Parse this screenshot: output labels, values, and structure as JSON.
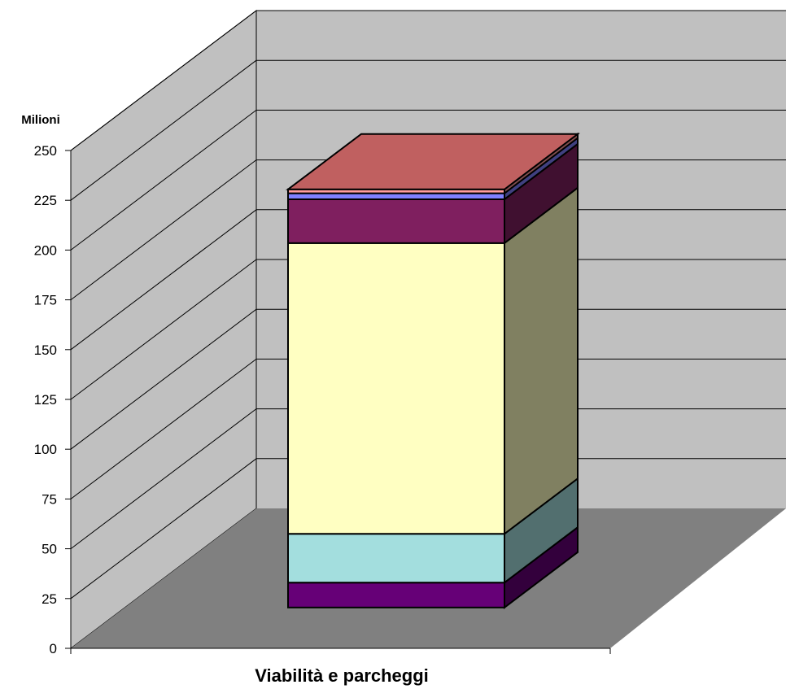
{
  "chart_data": {
    "type": "bar",
    "stacked": true,
    "three_d": true,
    "ylabel": "Milioni",
    "xlabel": "",
    "categories": [
      "Viabilità e parcheggi"
    ],
    "ylim": [
      0,
      250
    ],
    "yticks": [
      0,
      25,
      50,
      75,
      100,
      125,
      150,
      175,
      200,
      225,
      250
    ],
    "ytick_labels": [
      "0",
      "25",
      "50",
      "75",
      "100",
      "125",
      "150",
      "175",
      "200",
      "225",
      "250"
    ],
    "grid": true,
    "legend": "none",
    "series": [
      {
        "values": [
          12.5
        ],
        "color": "#660077"
      },
      {
        "values": [
          24.5
        ],
        "color": "#A3DEDE"
      },
      {
        "values": [
          146
        ],
        "color": "#FFFFC2"
      },
      {
        "values": [
          22
        ],
        "color": "#7F1F5F"
      },
      {
        "values": [
          3
        ],
        "color": "#8080FF"
      },
      {
        "values": [
          2
        ],
        "color": "#FF9C9C"
      }
    ],
    "wall_color": "#C0C0C0",
    "floor_color": "#808080"
  }
}
